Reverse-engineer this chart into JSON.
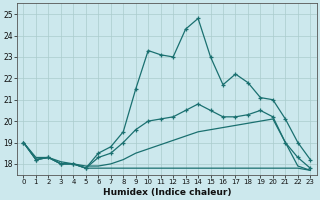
{
  "xlabel": "Humidex (Indice chaleur)",
  "background_color": "#cce8ed",
  "grid_color": "#aacccc",
  "line_color": "#1a7070",
  "x_ticks": [
    0,
    1,
    2,
    3,
    4,
    5,
    6,
    7,
    8,
    9,
    10,
    11,
    12,
    13,
    14,
    15,
    16,
    17,
    18,
    19,
    20,
    21,
    22,
    23
  ],
  "xlim": [
    -0.5,
    23.5
  ],
  "ylim": [
    17.5,
    25.5
  ],
  "y_ticks": [
    18,
    19,
    20,
    21,
    22,
    23,
    24,
    25
  ],
  "line1_x": [
    0,
    1,
    2,
    3,
    4,
    5,
    6,
    7,
    8,
    9,
    10,
    11,
    12,
    13,
    14,
    15,
    16,
    17,
    18,
    19,
    20,
    21,
    22,
    23
  ],
  "line1_y": [
    19.0,
    18.2,
    18.3,
    18.0,
    18.0,
    17.8,
    18.5,
    18.8,
    19.5,
    21.5,
    23.3,
    23.1,
    23.0,
    24.3,
    24.8,
    23.0,
    21.7,
    22.2,
    21.8,
    21.1,
    21.0,
    20.1,
    19.0,
    18.2
  ],
  "line2_x": [
    0,
    1,
    2,
    3,
    4,
    5,
    6,
    7,
    8,
    9,
    10,
    11,
    12,
    13,
    14,
    15,
    16,
    17,
    18,
    19,
    20,
    21,
    22,
    23
  ],
  "line2_y": [
    19.0,
    18.2,
    18.3,
    18.0,
    18.0,
    17.8,
    18.3,
    18.5,
    19.0,
    19.6,
    20.0,
    20.1,
    20.2,
    20.5,
    20.8,
    20.5,
    20.2,
    20.2,
    20.3,
    20.5,
    20.2,
    19.0,
    18.3,
    17.8
  ],
  "line3_x": [
    0,
    1,
    2,
    3,
    4,
    5,
    6,
    7,
    8,
    9,
    10,
    11,
    12,
    13,
    14,
    15,
    16,
    17,
    18,
    19,
    20,
    21,
    22,
    23
  ],
  "line3_y": [
    19.0,
    18.3,
    18.3,
    18.1,
    18.0,
    17.9,
    17.9,
    18.0,
    18.2,
    18.5,
    18.7,
    18.9,
    19.1,
    19.3,
    19.5,
    19.6,
    19.7,
    19.8,
    19.9,
    20.0,
    20.1,
    19.0,
    17.9,
    17.7
  ],
  "line4_x": [
    0,
    1,
    2,
    3,
    4,
    5,
    6,
    7,
    8,
    9,
    10,
    11,
    12,
    13,
    14,
    15,
    16,
    17,
    18,
    19,
    20,
    21,
    22,
    23
  ],
  "line4_y": [
    19.0,
    18.2,
    18.3,
    18.0,
    18.0,
    17.8,
    17.8,
    17.8,
    17.8,
    17.8,
    17.8,
    17.8,
    17.8,
    17.8,
    17.8,
    17.8,
    17.8,
    17.8,
    17.8,
    17.8,
    17.8,
    17.8,
    17.8,
    17.7
  ]
}
